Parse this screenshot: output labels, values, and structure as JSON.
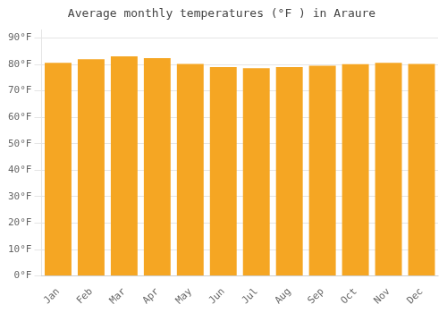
{
  "chart_data": {
    "type": "bar",
    "title": "Average monthly temperatures (°F ) in Araure",
    "categories": [
      "Jan",
      "Feb",
      "Mar",
      "Apr",
      "May",
      "Jun",
      "Jul",
      "Aug",
      "Sep",
      "Oct",
      "Nov",
      "Dec"
    ],
    "values": [
      80.6,
      82.0,
      83.1,
      82.4,
      80.2,
      79.0,
      78.6,
      79.0,
      79.5,
      80.1,
      80.6,
      80.2
    ],
    "color": "#F5A623",
    "ylim": [
      0,
      93
    ],
    "yticks": [
      {
        "value": 0,
        "label": "0°F"
      },
      {
        "value": 10,
        "label": "10°F"
      },
      {
        "value": 20,
        "label": "20°F"
      },
      {
        "value": 30,
        "label": "30°F"
      },
      {
        "value": 40,
        "label": "40°F"
      },
      {
        "value": 50,
        "label": "50°F"
      },
      {
        "value": 60,
        "label": "60°F"
      },
      {
        "value": 70,
        "label": "70°F"
      },
      {
        "value": 80,
        "label": "80°F"
      },
      {
        "value": 90,
        "label": "90°F"
      }
    ],
    "grid": true
  }
}
